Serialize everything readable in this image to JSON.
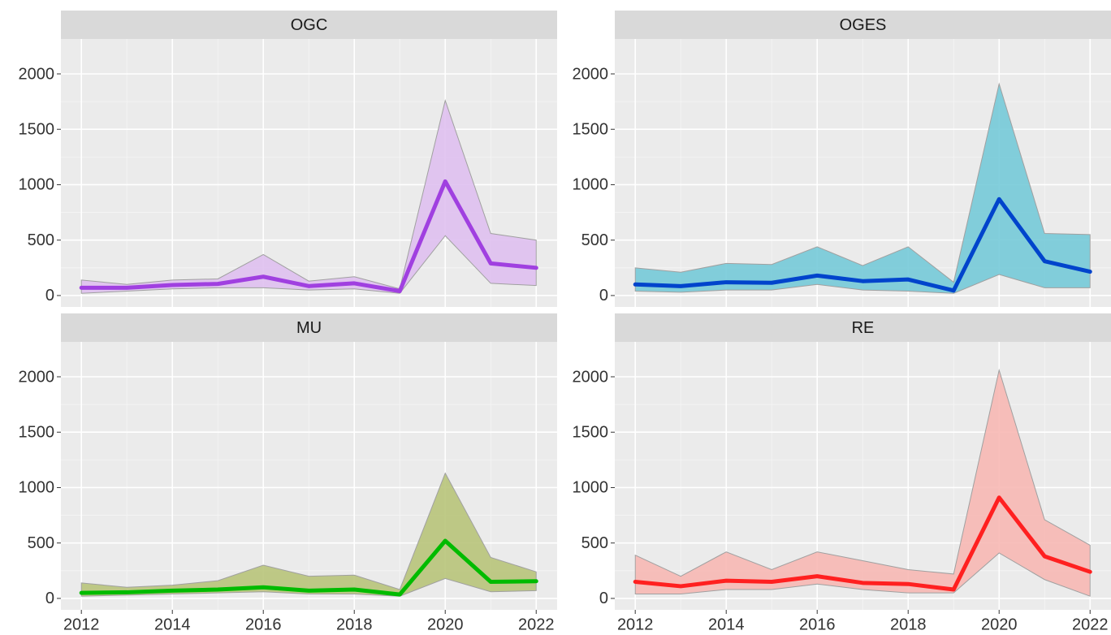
{
  "chart_data": [
    {
      "type": "line",
      "title": "OGC",
      "x": [
        2012,
        2013,
        2014,
        2015,
        2016,
        2017,
        2018,
        2019,
        2020,
        2021,
        2022
      ],
      "values": [
        70,
        70,
        95,
        105,
        170,
        85,
        110,
        40,
        1030,
        290,
        250
      ],
      "upper": [
        140,
        100,
        140,
        150,
        370,
        130,
        170,
        60,
        1760,
        560,
        500
      ],
      "lower": [
        20,
        40,
        60,
        70,
        70,
        50,
        60,
        20,
        540,
        110,
        90
      ],
      "color": "#a040e0",
      "band_color": "#dfc0ef",
      "xlim": [
        2011.55,
        2022.46
      ],
      "xticks": [
        2012,
        2014,
        2016,
        2018,
        2020,
        2022
      ],
      "ylim": [
        -103,
        2315
      ],
      "yticks": [
        0,
        500,
        1000,
        1500,
        2000
      ],
      "grid": true
    },
    {
      "type": "line",
      "title": "OGES",
      "x": [
        2012,
        2013,
        2014,
        2015,
        2016,
        2017,
        2018,
        2019,
        2020,
        2021,
        2022
      ],
      "values": [
        100,
        85,
        120,
        115,
        180,
        130,
        145,
        45,
        870,
        310,
        215
      ],
      "upper": [
        250,
        210,
        290,
        280,
        440,
        270,
        440,
        120,
        1910,
        560,
        550
      ],
      "lower": [
        40,
        30,
        50,
        50,
        100,
        50,
        40,
        20,
        190,
        70,
        70
      ],
      "color": "#0044cc",
      "band_color": "#76cad8",
      "xlim": [
        2011.55,
        2022.46
      ],
      "xticks": [
        2012,
        2014,
        2016,
        2018,
        2020,
        2022
      ],
      "ylim": [
        -103,
        2315
      ],
      "yticks": [
        0,
        500,
        1000,
        1500,
        2000
      ],
      "grid": true
    },
    {
      "type": "line",
      "title": "MU",
      "x": [
        2012,
        2013,
        2014,
        2015,
        2016,
        2017,
        2018,
        2019,
        2020,
        2021,
        2022
      ],
      "values": [
        50,
        55,
        70,
        80,
        100,
        70,
        80,
        35,
        520,
        150,
        155
      ],
      "upper": [
        140,
        100,
        120,
        160,
        300,
        200,
        210,
        80,
        1130,
        370,
        240
      ],
      "lower": [
        20,
        30,
        40,
        50,
        60,
        40,
        40,
        20,
        180,
        60,
        70
      ],
      "color": "#00bb00",
      "band_color": "#b8c47a",
      "xlim": [
        2011.55,
        2022.46
      ],
      "xticks": [
        2012,
        2014,
        2016,
        2018,
        2020,
        2022
      ],
      "ylim": [
        -103,
        2315
      ],
      "yticks": [
        0,
        500,
        1000,
        1500,
        2000
      ],
      "grid": true
    },
    {
      "type": "line",
      "title": "RE",
      "x": [
        2012,
        2013,
        2014,
        2015,
        2016,
        2017,
        2018,
        2019,
        2020,
        2021,
        2022
      ],
      "values": [
        150,
        110,
        160,
        150,
        200,
        140,
        130,
        80,
        910,
        380,
        240
      ],
      "upper": [
        390,
        200,
        420,
        260,
        420,
        340,
        260,
        220,
        2060,
        710,
        480
      ],
      "lower": [
        40,
        40,
        80,
        80,
        130,
        80,
        50,
        50,
        410,
        170,
        20
      ],
      "color": "#ff2020",
      "band_color": "#f7b8b4",
      "xlim": [
        2011.55,
        2022.46
      ],
      "xticks": [
        2012,
        2014,
        2016,
        2018,
        2020,
        2022
      ],
      "ylim": [
        -103,
        2315
      ],
      "yticks": [
        0,
        500,
        1000,
        1500,
        2000
      ],
      "grid": true
    }
  ]
}
